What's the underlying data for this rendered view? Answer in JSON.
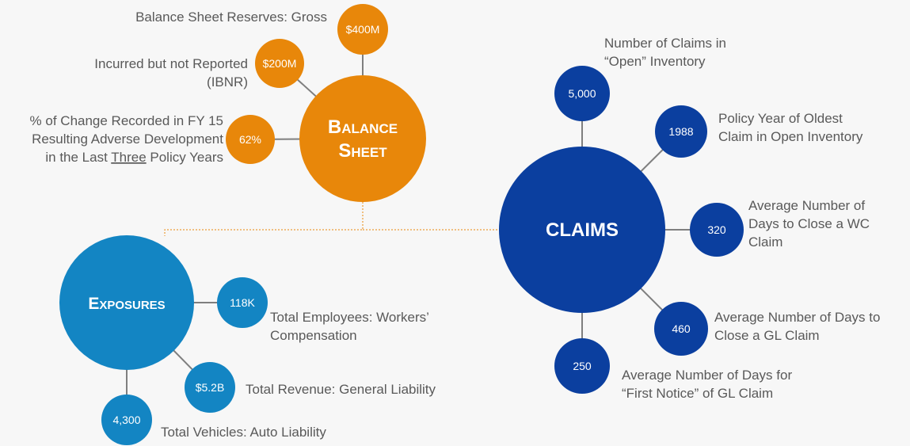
{
  "hubs": [
    {
      "title": [
        "Balance",
        "Sheet"
      ],
      "items": [
        {
          "value": "$400M",
          "label": [
            "Balance Sheet Reserves: Gross"
          ]
        },
        {
          "value": "$200M",
          "label": [
            "Incurred but not Reported",
            "(IBNR)"
          ]
        },
        {
          "value": "62%",
          "label": [
            "% of Change Recorded in FY 15",
            "Resulting Adverse Development",
            [
              "in the Last ",
              "Three",
              " Policy Years"
            ]
          ]
        }
      ]
    },
    {
      "title": [
        "CLAIMS"
      ],
      "items": [
        {
          "value": "5,000",
          "label": [
            "Number of Claims in",
            "“Open” Inventory"
          ]
        },
        {
          "value": "1988",
          "label": [
            "Policy Year of Oldest",
            "Claim in Open Inventory"
          ]
        },
        {
          "value": "320",
          "label": [
            "Average Number of",
            "Days to Close a WC",
            "Claim"
          ]
        },
        {
          "value": "460",
          "label": [
            "Average Number of Days to",
            "Close a GL Claim"
          ]
        },
        {
          "value": "250",
          "label": [
            "Average Number of Days for",
            "“First Notice” of GL Claim"
          ]
        }
      ]
    },
    {
      "title": [
        "Exposures"
      ],
      "items": [
        {
          "value": "118K",
          "label": [
            "Total Employees: Workers’",
            "Compensation"
          ]
        },
        {
          "value": "$5.2B",
          "label": [
            "Total Revenue: General Liability"
          ]
        },
        {
          "value": "4,300",
          "label": [
            "Total Vehicles: Auto Liability"
          ]
        }
      ]
    }
  ]
}
